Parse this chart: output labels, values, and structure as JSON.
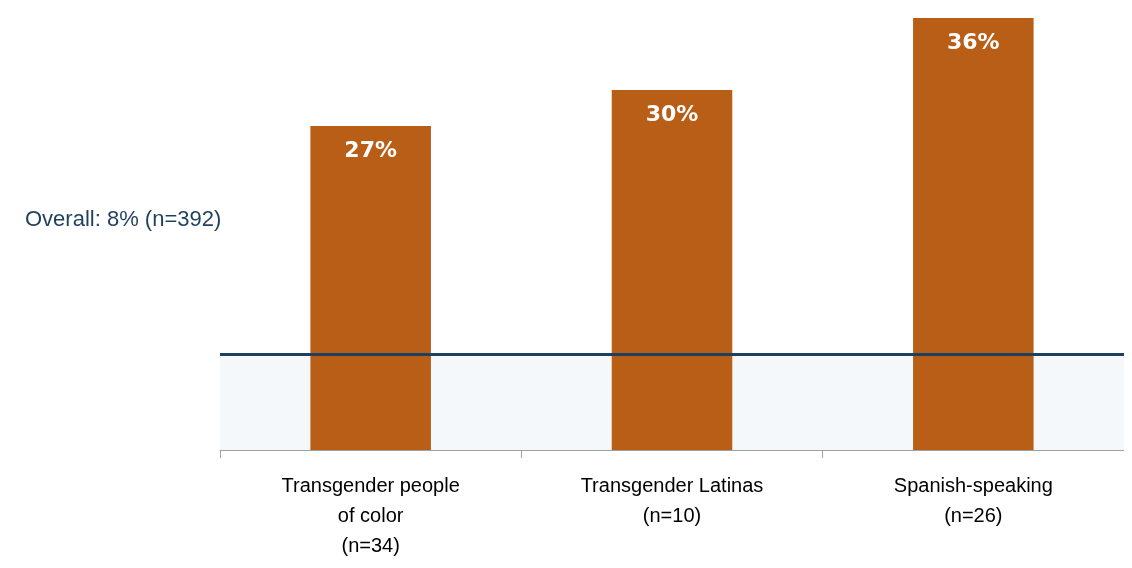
{
  "chart_data": {
    "type": "bar",
    "categories": [
      "Transgender people\nof color\n(n=34)",
      "Transgender Latinas\n(n=10)",
      "Spanish-speaking\n(n=26)"
    ],
    "values": [
      27,
      30,
      36
    ],
    "color": "#b85e17",
    "value_labels": [
      "27%",
      "30%",
      "36%"
    ],
    "ref_lines": [
      {
        "axis": "y",
        "value": 8,
        "label": "Overall: 8% (n=392)",
        "color": "#1f3f5f"
      }
    ],
    "bands": [
      {
        "axis": "y",
        "from": 0,
        "to": 8,
        "color": "#eef3f8"
      }
    ]
  }
}
